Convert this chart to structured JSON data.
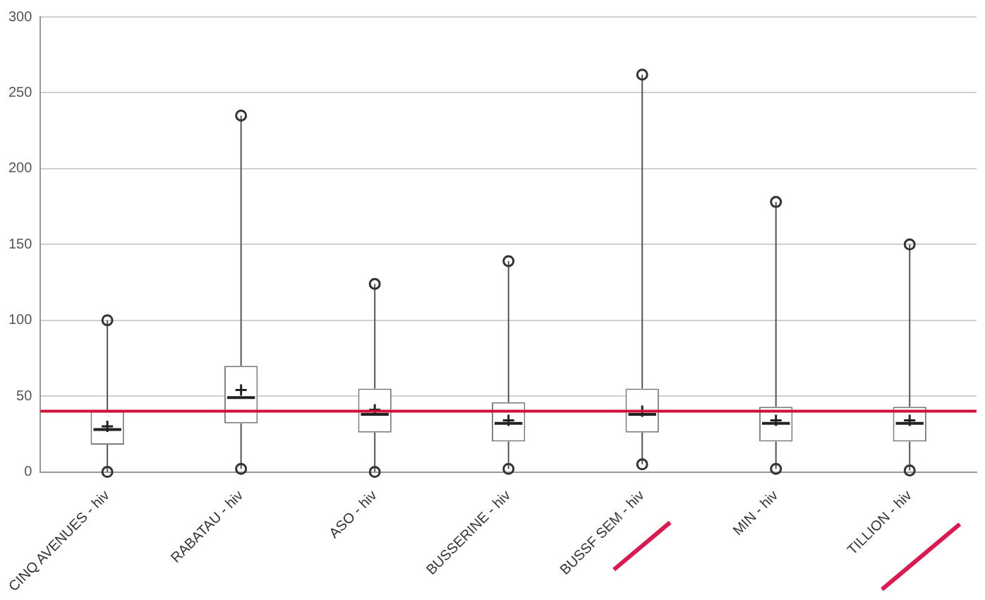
{
  "chart_data": {
    "type": "box",
    "color": "#7f7f7f",
    "categories": [
      "CINQ AVENUES - hiv",
      "RABATAU - hiv",
      "ASO - hiv",
      "BUSSERINE - hiv",
      "BUSSF SEM - hiv",
      "MIN - hiv",
      "TILLION - hiv"
    ],
    "boxes": [
      {
        "low": 0,
        "q1": 18,
        "median": 28,
        "q3": 40,
        "high": 100,
        "mean": 30,
        "outliers": [
          0,
          100
        ]
      },
      {
        "low": 2,
        "q1": 32,
        "median": 49,
        "q3": 70,
        "high": 235,
        "mean": 54,
        "outliers": [
          2,
          235
        ]
      },
      {
        "low": 0,
        "q1": 26,
        "median": 38,
        "q3": 55,
        "high": 124,
        "mean": 41,
        "outliers": [
          0,
          124
        ]
      },
      {
        "low": 2,
        "q1": 20,
        "median": 32,
        "q3": 46,
        "high": 139,
        "mean": 34,
        "outliers": [
          2,
          139
        ]
      },
      {
        "low": 5,
        "q1": 26,
        "median": 38,
        "q3": 55,
        "high": 262,
        "mean": 40,
        "outliers": [
          5,
          262
        ]
      },
      {
        "low": 2,
        "q1": 20,
        "median": 32,
        "q3": 43,
        "high": 178,
        "mean": 34,
        "outliers": [
          2,
          178
        ]
      },
      {
        "low": 1,
        "q1": 20,
        "median": 32,
        "q3": 43,
        "high": 150,
        "mean": 34,
        "outliers": [
          1,
          150
        ]
      }
    ],
    "ylim": [
      0,
      300
    ],
    "yticks": [
      0,
      50,
      100,
      150,
      200,
      250,
      300
    ],
    "grid": "y",
    "ref_lines": [
      {
        "axis": "y",
        "value": 40,
        "color": "#d0103a"
      }
    ]
  }
}
